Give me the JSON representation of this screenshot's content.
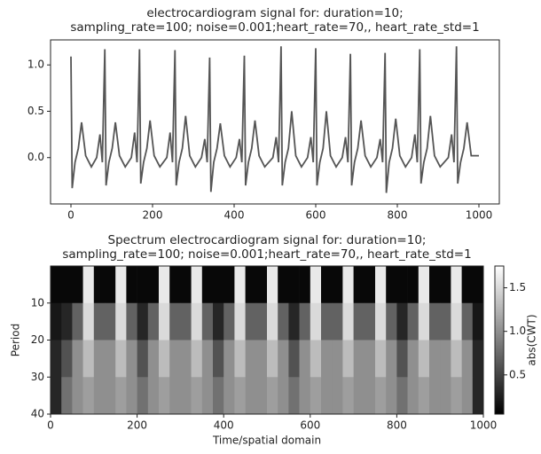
{
  "chart_data": [
    {
      "type": "line",
      "title": [
        "electrocardiogram signal for: duration=10;",
        "sampling_rate=100; noise=0.001;heart_rate=70,, heart_rate_std=1"
      ],
      "color": "#555555",
      "x": [
        0,
        3,
        10,
        18,
        26,
        36,
        50,
        63,
        71,
        77,
        83,
        86,
        93,
        101,
        109,
        119,
        133,
        148,
        156,
        162,
        168,
        171,
        178,
        186,
        194,
        204,
        218,
        235,
        243,
        249,
        255,
        258,
        265,
        273,
        281,
        291,
        305,
        320,
        328,
        334,
        340,
        343,
        350,
        358,
        366,
        376,
        390,
        405,
        413,
        419,
        425,
        428,
        435,
        443,
        451,
        461,
        475,
        495,
        503,
        509,
        515,
        518,
        525,
        533,
        541,
        551,
        565,
        580,
        588,
        594,
        600,
        603,
        610,
        618,
        626,
        636,
        650,
        665,
        673,
        679,
        685,
        688,
        695,
        703,
        711,
        721,
        735,
        750,
        758,
        764,
        770,
        773,
        780,
        788,
        796,
        806,
        820,
        835,
        843,
        849,
        855,
        858,
        865,
        873,
        881,
        891,
        905,
        925,
        933,
        939,
        945,
        948,
        955,
        963,
        971,
        981,
        1000
      ],
      "values": [
        1.09,
        -0.33,
        -0.05,
        0.1,
        0.38,
        0.02,
        -0.1,
        0,
        0.25,
        -0.05,
        1.17,
        -0.3,
        -0.05,
        0.1,
        0.38,
        0.02,
        -0.1,
        0,
        0.27,
        -0.05,
        1.17,
        -0.28,
        -0.05,
        0.1,
        0.4,
        0.02,
        -0.1,
        0,
        0.27,
        -0.05,
        1.16,
        -0.3,
        -0.05,
        0.1,
        0.45,
        0.02,
        -0.1,
        0,
        0.2,
        -0.05,
        1.08,
        -0.37,
        -0.05,
        0.1,
        0.37,
        0.02,
        -0.1,
        0,
        0.2,
        -0.05,
        1.1,
        -0.3,
        -0.05,
        0.1,
        0.4,
        0.02,
        -0.1,
        0,
        0.22,
        -0.05,
        1.2,
        -0.3,
        -0.05,
        0.1,
        0.5,
        0.02,
        -0.1,
        0,
        0.22,
        -0.05,
        1.18,
        -0.3,
        -0.05,
        0.1,
        0.5,
        0.02,
        -0.1,
        0,
        0.22,
        -0.05,
        1.12,
        -0.3,
        -0.05,
        0.1,
        0.4,
        0.02,
        -0.1,
        0,
        0.2,
        -0.05,
        1.13,
        -0.38,
        -0.05,
        0.1,
        0.42,
        0.02,
        -0.1,
        0,
        0.25,
        -0.05,
        1.17,
        -0.28,
        -0.05,
        0.1,
        0.45,
        0.02,
        -0.1,
        0,
        0.25,
        -0.05,
        1.2,
        -0.28,
        -0.05,
        0.1,
        0.38,
        0.02,
        0.02
      ],
      "xlim": [
        -50,
        1050
      ],
      "xticks": [
        0,
        200,
        400,
        600,
        800,
        1000
      ],
      "ylim": [
        -0.5,
        1.27
      ],
      "yticks": [
        {
          "value": 0,
          "label": "0.0"
        },
        0.5,
        {
          "value": 1,
          "label": "1.0"
        }
      ]
    },
    {
      "type": "heatmap",
      "title": [
        "Spectrum electrocardiogram signal for: duration=10;",
        "sampling_rate=100; noise=0.001;heart_rate=70,, heart_rate_std=1"
      ],
      "xlabel": "Time/spatial domain",
      "ylabel": "Period",
      "colormap": "gray",
      "x_edges": [
        0,
        25,
        50,
        75,
        100,
        125,
        150,
        175,
        200,
        225,
        250,
        275,
        300,
        325,
        350,
        375,
        400,
        425,
        450,
        475,
        500,
        525,
        550,
        575,
        600,
        625,
        650,
        675,
        700,
        725,
        750,
        775,
        800,
        825,
        850,
        875,
        900,
        925,
        950,
        975,
        1000
      ],
      "y_edges": [
        0,
        10,
        20,
        30,
        40
      ],
      "z": [
        [
          0.1,
          0.1,
          0.1,
          1.6,
          0.1,
          0.1,
          1.6,
          0.1,
          0.1,
          0.1,
          1.6,
          0.1,
          0.1,
          1.6,
          0.1,
          0.1,
          0.1,
          1.6,
          0.1,
          0.1,
          1.6,
          0.1,
          0.1,
          0.1,
          1.6,
          0.1,
          0.1,
          1.6,
          0.1,
          0.1,
          1.6,
          0.1,
          0.1,
          0.1,
          1.6,
          0.1,
          0.1,
          1.6,
          0.1,
          0.1
        ],
        [
          0.2,
          0.3,
          0.7,
          1.5,
          0.7,
          0.7,
          1.5,
          0.7,
          0.3,
          0.7,
          1.5,
          0.7,
          0.7,
          1.5,
          0.7,
          0.3,
          0.7,
          1.5,
          0.7,
          0.7,
          1.5,
          0.7,
          0.3,
          0.7,
          1.5,
          0.7,
          0.7,
          1.5,
          0.7,
          0.7,
          1.5,
          0.7,
          0.3,
          0.7,
          1.5,
          0.7,
          0.7,
          1.5,
          0.7,
          0.2
        ],
        [
          0.3,
          0.6,
          1.0,
          1.3,
          1.0,
          1.0,
          1.3,
          1.0,
          0.6,
          1.0,
          1.3,
          1.0,
          1.0,
          1.3,
          1.0,
          0.6,
          1.0,
          1.3,
          1.0,
          1.0,
          1.3,
          1.0,
          0.6,
          1.0,
          1.3,
          1.0,
          1.0,
          1.3,
          1.0,
          1.0,
          1.3,
          1.0,
          0.6,
          1.0,
          1.3,
          1.0,
          1.0,
          1.3,
          1.0,
          0.3
        ],
        [
          0.3,
          0.8,
          1.0,
          1.1,
          1.0,
          1.0,
          1.1,
          1.0,
          0.8,
          1.0,
          1.1,
          1.0,
          1.0,
          1.1,
          1.0,
          0.8,
          1.0,
          1.1,
          1.0,
          1.0,
          1.1,
          1.0,
          0.8,
          1.0,
          1.1,
          1.0,
          1.0,
          1.1,
          1.0,
          1.0,
          1.1,
          1.0,
          0.8,
          1.0,
          1.1,
          1.0,
          1.0,
          1.1,
          1.0,
          0.3
        ]
      ],
      "xlim": [
        0,
        1000
      ],
      "xticks": [
        0,
        200,
        400,
        600,
        800,
        1000
      ],
      "ylim": [
        40,
        0
      ],
      "yticks": [
        10,
        20,
        30,
        40
      ],
      "colorbar": {
        "label": "abs(CWT)",
        "lim": [
          0.05,
          1.75
        ],
        "ticks": [
          0.5,
          {
            "value": 1,
            "label": "1.0"
          },
          1.5
        ]
      }
    }
  ]
}
